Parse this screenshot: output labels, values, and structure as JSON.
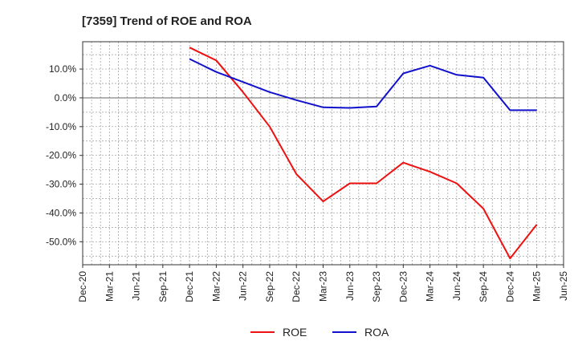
{
  "chart_data": {
    "type": "line",
    "title": "[7359]  Trend of ROE and ROA",
    "xlabel": "",
    "ylabel": "",
    "x_ticks": [
      "Dec-20",
      "Mar-21",
      "Jun-21",
      "Sep-21",
      "Dec-21",
      "Mar-22",
      "Jun-22",
      "Sep-22",
      "Dec-22",
      "Mar-23",
      "Jun-23",
      "Sep-23",
      "Dec-23",
      "Mar-24",
      "Jun-24",
      "Sep-24",
      "Dec-24",
      "Mar-25",
      "Jun-25"
    ],
    "y_ticks": [
      10,
      0,
      -10,
      -20,
      -30,
      -40,
      -50
    ],
    "y_tick_labels": [
      "10.0%",
      "0.0%",
      "-10.0%",
      "-20.0%",
      "-30.0%",
      "-40.0%",
      "-50.0%"
    ],
    "ylim": [
      -58,
      19.5
    ],
    "grid": true,
    "legend_position": "bottom",
    "series": [
      {
        "name": "ROE",
        "color": "#ee1111",
        "x": [
          "Dec-21",
          "Mar-22",
          "Jun-22",
          "Sep-22",
          "Dec-22",
          "Mar-23",
          "Jun-23",
          "Sep-23",
          "Dec-23",
          "Mar-24",
          "Jun-24",
          "Sep-24",
          "Dec-24",
          "Mar-25"
        ],
        "values": [
          17.5,
          13.0,
          2.0,
          -10.0,
          -26.5,
          -36.0,
          -29.7,
          -29.7,
          -22.5,
          -25.7,
          -29.7,
          -38.5,
          -55.8,
          -44.0
        ]
      },
      {
        "name": "ROA",
        "color": "#1111cc",
        "x": [
          "Dec-21",
          "Mar-22",
          "Jun-22",
          "Sep-22",
          "Dec-22",
          "Mar-23",
          "Jun-23",
          "Sep-23",
          "Dec-23",
          "Mar-24",
          "Jun-24",
          "Sep-24",
          "Dec-24",
          "Mar-25"
        ],
        "values": [
          13.5,
          9.0,
          5.5,
          2.0,
          -0.8,
          -3.3,
          -3.5,
          -3.0,
          8.5,
          11.2,
          8.0,
          7.0,
          -4.3,
          -4.3
        ]
      }
    ]
  }
}
